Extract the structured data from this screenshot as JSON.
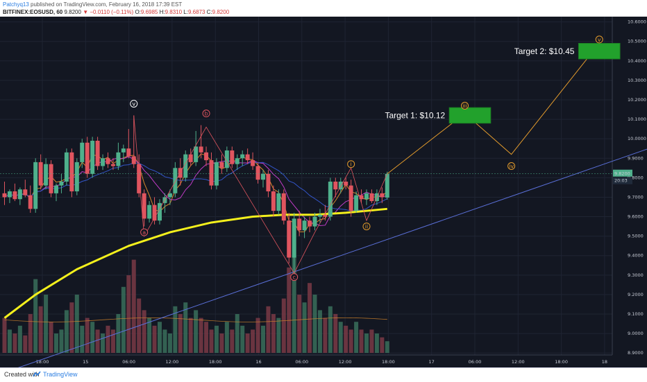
{
  "header": {
    "author": "Patchyq13",
    "published": " published on TradingView.com, February 16, 2018 17:39 EST",
    "symbol": "BITFINEX:EOSUSD, 60",
    "last": "9.8200",
    "change": "−0.0110 (−0.11%)",
    "o_label": "O:",
    "o": "9.6985",
    "h_label": "H:",
    "h": "9.8310",
    "l_label": "L:",
    "l": "9.6873",
    "c_label": "C:",
    "c": "9.8200"
  },
  "footer": {
    "created_with": "Created with",
    "brand": "TradingView"
  },
  "colors": {
    "background": "#131722",
    "grid": "#1f2433",
    "up": "#4fb08c",
    "down": "#e0555f",
    "up_volume": "#3a6f5b",
    "down_volume": "#7a3a45",
    "ma_yellow": "#f4f01c",
    "ma_orange": "#d7872c",
    "ma_magenta": "#c23cc8",
    "ma_blue": "#3355c8",
    "trendline": "#5a6fd8",
    "projection": "#e39b2c",
    "target_box": "#22a12c",
    "last_price_badge": "#4fb08c"
  },
  "chart_data": {
    "type": "candlestick",
    "y_axis": {
      "ticks": [
        "10.6000",
        "10.5000",
        "10.4000",
        "10.3000",
        "10.2000",
        "10.1000",
        "10.0000",
        "9.9000",
        "9.8000",
        "9.7000",
        "9.6000",
        "9.5000",
        "9.4000",
        "9.3000",
        "9.2000",
        "9.1000",
        "9.0000",
        "8.9000"
      ],
      "ylim": [
        8.89,
        10.62
      ]
    },
    "x_axis": {
      "ticks": [
        "18:00",
        "15",
        "06:00",
        "12:00",
        "18:00",
        "16",
        "06:00",
        "12:00",
        "18:00",
        "17",
        "06:00",
        "12:00",
        "18:00",
        "18"
      ]
    },
    "last_price_label": "9.8200",
    "countdown_label": "20:03",
    "candles": [
      {
        "o": 9.72,
        "h": 9.78,
        "l": 9.66,
        "c": 9.7
      },
      {
        "o": 9.7,
        "h": 9.74,
        "l": 9.67,
        "c": 9.73
      },
      {
        "o": 9.73,
        "h": 9.77,
        "l": 9.68,
        "c": 9.69
      },
      {
        "o": 9.69,
        "h": 9.75,
        "l": 9.66,
        "c": 9.74
      },
      {
        "o": 9.74,
        "h": 9.79,
        "l": 9.7,
        "c": 9.71
      },
      {
        "o": 9.71,
        "h": 9.76,
        "l": 9.62,
        "c": 9.64
      },
      {
        "o": 9.64,
        "h": 9.9,
        "l": 9.62,
        "c": 9.88
      },
      {
        "o": 9.88,
        "h": 9.92,
        "l": 9.74,
        "c": 9.76
      },
      {
        "o": 9.76,
        "h": 9.9,
        "l": 9.74,
        "c": 9.87
      },
      {
        "o": 9.87,
        "h": 9.89,
        "l": 9.7,
        "c": 9.72
      },
      {
        "o": 9.72,
        "h": 9.77,
        "l": 9.68,
        "c": 9.76
      },
      {
        "o": 9.76,
        "h": 9.82,
        "l": 9.72,
        "c": 9.78
      },
      {
        "o": 9.78,
        "h": 9.95,
        "l": 9.76,
        "c": 9.93
      },
      {
        "o": 9.93,
        "h": 9.95,
        "l": 9.7,
        "c": 9.73
      },
      {
        "o": 9.73,
        "h": 9.9,
        "l": 9.71,
        "c": 9.88
      },
      {
        "o": 9.88,
        "h": 10.0,
        "l": 9.85,
        "c": 9.98
      },
      {
        "o": 9.98,
        "h": 10.01,
        "l": 9.8,
        "c": 9.82
      },
      {
        "o": 9.82,
        "h": 10.01,
        "l": 9.8,
        "c": 9.99
      },
      {
        "o": 9.99,
        "h": 10.01,
        "l": 9.84,
        "c": 9.86
      },
      {
        "o": 9.86,
        "h": 9.92,
        "l": 9.84,
        "c": 9.9
      },
      {
        "o": 9.9,
        "h": 9.93,
        "l": 9.85,
        "c": 9.87
      },
      {
        "o": 9.87,
        "h": 9.9,
        "l": 9.84,
        "c": 9.86
      },
      {
        "o": 9.86,
        "h": 9.98,
        "l": 9.84,
        "c": 9.93
      },
      {
        "o": 9.93,
        "h": 9.97,
        "l": 9.88,
        "c": 9.95
      },
      {
        "o": 9.95,
        "h": 10.05,
        "l": 9.9,
        "c": 9.91
      },
      {
        "o": 9.91,
        "h": 10.12,
        "l": 9.85,
        "c": 9.87
      },
      {
        "o": 9.87,
        "h": 9.92,
        "l": 9.7,
        "c": 9.72
      },
      {
        "o": 9.72,
        "h": 9.74,
        "l": 9.55,
        "c": 9.59
      },
      {
        "o": 9.59,
        "h": 9.68,
        "l": 9.57,
        "c": 9.66
      },
      {
        "o": 9.66,
        "h": 9.7,
        "l": 9.56,
        "c": 9.58
      },
      {
        "o": 9.58,
        "h": 9.69,
        "l": 9.56,
        "c": 9.67
      },
      {
        "o": 9.67,
        "h": 9.72,
        "l": 9.62,
        "c": 9.7
      },
      {
        "o": 9.7,
        "h": 9.74,
        "l": 9.66,
        "c": 9.72
      },
      {
        "o": 9.72,
        "h": 9.88,
        "l": 9.7,
        "c": 9.85
      },
      {
        "o": 9.85,
        "h": 9.9,
        "l": 9.76,
        "c": 9.8
      },
      {
        "o": 9.8,
        "h": 9.94,
        "l": 9.78,
        "c": 9.92
      },
      {
        "o": 9.92,
        "h": 9.95,
        "l": 9.86,
        "c": 9.88
      },
      {
        "o": 9.88,
        "h": 10.04,
        "l": 9.86,
        "c": 9.96
      },
      {
        "o": 9.96,
        "h": 10.07,
        "l": 9.9,
        "c": 9.93
      },
      {
        "o": 9.93,
        "h": 9.96,
        "l": 9.86,
        "c": 9.89
      },
      {
        "o": 9.89,
        "h": 9.93,
        "l": 9.74,
        "c": 9.76
      },
      {
        "o": 9.76,
        "h": 9.9,
        "l": 9.74,
        "c": 9.88
      },
      {
        "o": 9.88,
        "h": 9.92,
        "l": 9.82,
        "c": 9.85
      },
      {
        "o": 9.85,
        "h": 9.96,
        "l": 9.83,
        "c": 9.94
      },
      {
        "o": 9.94,
        "h": 9.96,
        "l": 9.85,
        "c": 9.87
      },
      {
        "o": 9.87,
        "h": 9.92,
        "l": 9.84,
        "c": 9.9
      },
      {
        "o": 9.9,
        "h": 9.94,
        "l": 9.86,
        "c": 9.92
      },
      {
        "o": 9.92,
        "h": 9.95,
        "l": 9.87,
        "c": 9.89
      },
      {
        "o": 9.89,
        "h": 9.93,
        "l": 9.84,
        "c": 9.86
      },
      {
        "o": 9.86,
        "h": 9.88,
        "l": 9.77,
        "c": 9.79
      },
      {
        "o": 9.79,
        "h": 9.84,
        "l": 9.75,
        "c": 9.82
      },
      {
        "o": 9.82,
        "h": 9.84,
        "l": 9.7,
        "c": 9.73
      },
      {
        "o": 9.73,
        "h": 9.76,
        "l": 9.6,
        "c": 9.63
      },
      {
        "o": 9.63,
        "h": 9.74,
        "l": 9.61,
        "c": 9.72
      },
      {
        "o": 9.72,
        "h": 9.74,
        "l": 9.56,
        "c": 9.58
      },
      {
        "o": 9.58,
        "h": 9.62,
        "l": 9.36,
        "c": 9.39
      },
      {
        "o": 9.39,
        "h": 9.62,
        "l": 9.31,
        "c": 9.59
      },
      {
        "o": 9.59,
        "h": 9.63,
        "l": 9.5,
        "c": 9.53
      },
      {
        "o": 9.53,
        "h": 9.6,
        "l": 9.49,
        "c": 9.58
      },
      {
        "o": 9.58,
        "h": 9.6,
        "l": 9.52,
        "c": 9.55
      },
      {
        "o": 9.55,
        "h": 9.62,
        "l": 9.53,
        "c": 9.6
      },
      {
        "o": 9.6,
        "h": 9.64,
        "l": 9.57,
        "c": 9.61
      },
      {
        "o": 9.61,
        "h": 9.66,
        "l": 9.58,
        "c": 9.6
      },
      {
        "o": 9.6,
        "h": 9.8,
        "l": 9.58,
        "c": 9.78
      },
      {
        "o": 9.78,
        "h": 9.8,
        "l": 9.7,
        "c": 9.74
      },
      {
        "o": 9.74,
        "h": 9.8,
        "l": 9.72,
        "c": 9.78
      },
      {
        "o": 9.78,
        "h": 9.8,
        "l": 9.74,
        "c": 9.76
      },
      {
        "o": 9.76,
        "h": 9.79,
        "l": 9.6,
        "c": 9.63
      },
      {
        "o": 9.63,
        "h": 9.73,
        "l": 9.62,
        "c": 9.71
      },
      {
        "o": 9.71,
        "h": 9.74,
        "l": 9.67,
        "c": 9.69
      },
      {
        "o": 9.69,
        "h": 9.74,
        "l": 9.66,
        "c": 9.72
      },
      {
        "o": 9.72,
        "h": 9.74,
        "l": 9.67,
        "c": 9.68
      },
      {
        "o": 9.68,
        "h": 9.74,
        "l": 9.66,
        "c": 9.72
      },
      {
        "o": 9.72,
        "h": 9.75,
        "l": 9.67,
        "c": 9.7
      },
      {
        "o": 9.698,
        "h": 9.831,
        "l": 9.687,
        "c": 9.82
      }
    ],
    "volumes": [
      0.18,
      0.12,
      0.1,
      0.14,
      0.09,
      0.2,
      0.38,
      0.24,
      0.3,
      0.16,
      0.1,
      0.12,
      0.22,
      0.26,
      0.3,
      0.14,
      0.18,
      0.16,
      0.12,
      0.1,
      0.14,
      0.12,
      0.2,
      0.34,
      0.4,
      0.48,
      0.28,
      0.22,
      0.18,
      0.14,
      0.16,
      0.12,
      0.1,
      0.24,
      0.2,
      0.26,
      0.18,
      0.22,
      0.18,
      0.16,
      0.12,
      0.14,
      0.1,
      0.16,
      0.12,
      0.2,
      0.14,
      0.1,
      0.12,
      0.18,
      0.14,
      0.24,
      0.2,
      0.18,
      0.28,
      0.44,
      0.5,
      0.3,
      0.26,
      0.36,
      0.3,
      0.22,
      0.18,
      0.24,
      0.2,
      0.16,
      0.14,
      0.12,
      0.16,
      0.12,
      0.1,
      0.12,
      0.1,
      0.08,
      0.06
    ],
    "ma_yellow": [
      [
        0,
        9.08
      ],
      [
        6,
        9.2
      ],
      [
        14,
        9.33
      ],
      [
        24,
        9.45
      ],
      [
        32,
        9.52
      ],
      [
        40,
        9.57
      ],
      [
        48,
        9.6
      ],
      [
        54,
        9.61
      ],
      [
        60,
        9.61
      ],
      [
        66,
        9.62
      ],
      [
        74,
        9.64
      ]
    ],
    "trendline": [
      [
        0,
        8.8
      ],
      [
        130,
        10.0
      ]
    ],
    "wave_labels": [
      {
        "label": "v",
        "i": 25,
        "y": 10.18
      },
      {
        "label": "a",
        "i": 27,
        "y": 9.52
      },
      {
        "label": "b",
        "i": 39,
        "y": 10.13
      },
      {
        "label": "c",
        "i": 56,
        "y": 9.29
      },
      {
        "label": "i",
        "i": 67,
        "y": 9.87
      },
      {
        "label": "ii",
        "i": 70,
        "y": 9.55
      },
      {
        "label": "iii",
        "i": 89,
        "y": 10.17
      },
      {
        "label": "iv",
        "i": 98,
        "y": 9.86
      },
      {
        "label": "v",
        "i": 115,
        "y": 10.51
      }
    ],
    "projection": [
      [
        74,
        9.82
      ],
      [
        89,
        10.13
      ],
      [
        98,
        9.92
      ],
      [
        115,
        10.49
      ]
    ],
    "abc_path": [
      [
        25,
        10.12
      ],
      [
        27,
        9.5
      ],
      [
        39,
        10.06
      ],
      [
        56,
        9.31
      ],
      [
        60,
        9.52
      ],
      [
        67,
        9.85
      ],
      [
        70,
        9.58
      ],
      [
        74,
        9.82
      ]
    ],
    "targets": [
      {
        "label": "Target 1: $10.12",
        "i0": 86,
        "i1": 94,
        "y_top": 10.16,
        "y_bot": 10.08
      },
      {
        "label": "Target 2: $10.45",
        "i0": 111,
        "i1": 119,
        "y_top": 10.49,
        "y_bot": 10.41
      }
    ]
  }
}
